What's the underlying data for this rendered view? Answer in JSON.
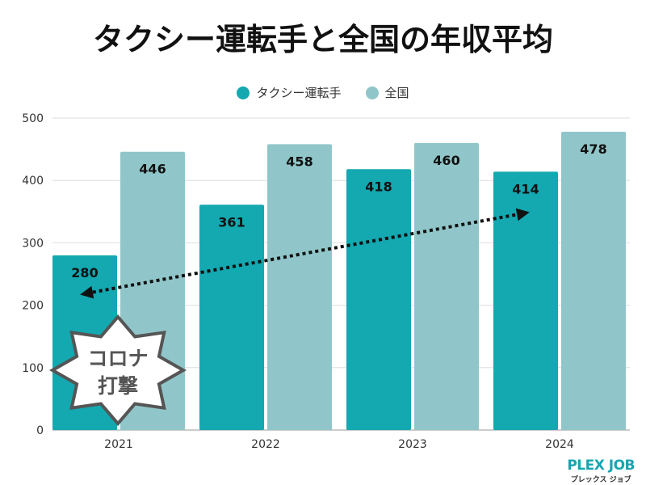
{
  "chart_data": {
    "type": "bar",
    "title": "タクシー運転手と全国の年収平均",
    "categories": [
      "2021",
      "2022",
      "2023",
      "2024"
    ],
    "series": [
      {
        "name": "タクシー運転手",
        "values": [
          280,
          361,
          418,
          414
        ],
        "color": "#14a8b1"
      },
      {
        "name": "全国",
        "values": [
          446,
          458,
          460,
          478
        ],
        "color": "#90c6c9"
      }
    ],
    "yticks": [
      0,
      100,
      200,
      300,
      400,
      500
    ],
    "ylim": [
      0,
      500
    ],
    "grid": true,
    "legend": "top-center",
    "annotation": {
      "label_line1": "コロナ",
      "label_line2": "打撃",
      "arrow": "dotted double arrow from 2021 タクシー運転手 to 2024 タクシー運転手"
    }
  },
  "logo": {
    "name": "PLEX JOB",
    "sub": "プレックス ジョブ"
  }
}
